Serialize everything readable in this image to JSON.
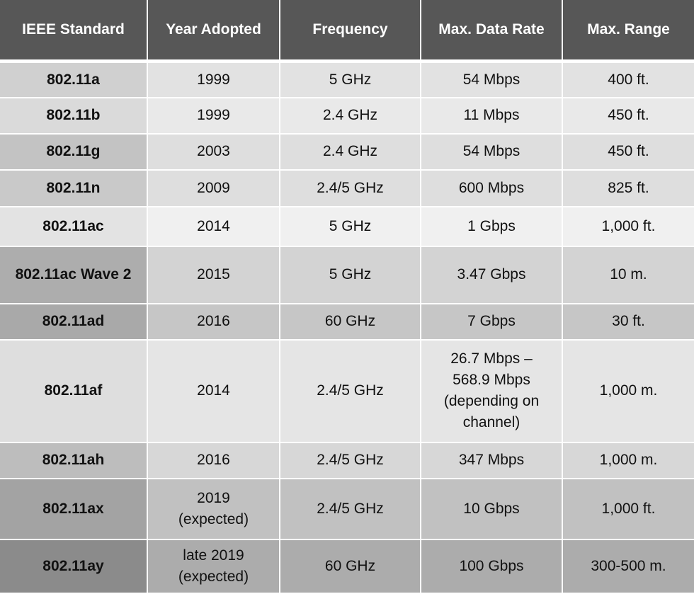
{
  "headers": [
    "IEEE Standard",
    "Year Adopted",
    "Frequency",
    "Max. Data Rate",
    "Max. Range"
  ],
  "rows": [
    {
      "standard": "802.11a",
      "year": "1999",
      "frequency": "5 GHz",
      "rate": "54 Mbps",
      "range": "400 ft."
    },
    {
      "standard": "802.11b",
      "year": "1999",
      "frequency": "2.4 GHz",
      "rate": "11 Mbps",
      "range": "450 ft."
    },
    {
      "standard": "802.11g",
      "year": "2003",
      "frequency": "2.4 GHz",
      "rate": "54 Mbps",
      "range": "450 ft."
    },
    {
      "standard": "802.11n",
      "year": "2009",
      "frequency": "2.4/5 GHz",
      "rate": "600 Mbps",
      "range": "825 ft."
    },
    {
      "standard": "802.11ac",
      "year": "2014",
      "frequency": "5 GHz",
      "rate": "1 Gbps",
      "range": "1,000 ft."
    },
    {
      "standard": "802.11ac Wave 2",
      "year": "2015",
      "frequency": "5 GHz",
      "rate": "3.47 Gbps",
      "range": "10 m."
    },
    {
      "standard": "802.11ad",
      "year": "2016",
      "frequency": "60 GHz",
      "rate": "7 Gbps",
      "range": "30 ft."
    },
    {
      "standard": "802.11af",
      "year": "2014",
      "frequency": "2.4/5 GHz",
      "rate": "26.7 Mbps –\n568.9 Mbps\n(depending on\nchannel)",
      "range": "1,000 m."
    },
    {
      "standard": "802.11ah",
      "year": "2016",
      "frequency": "2.4/5 GHz",
      "rate": "347 Mbps",
      "range": "1,000 m."
    },
    {
      "standard": "802.11ax",
      "year": "2019\n(expected)",
      "frequency": "2.4/5 GHz",
      "rate": "10 Gbps",
      "range": "1,000 ft."
    },
    {
      "standard": "802.11ay",
      "year": "late 2019\n(expected)",
      "frequency": "60 GHz",
      "rate": "100 Gbps",
      "range": "300-500 m."
    }
  ],
  "colors": {
    "header_bg": "#575757",
    "header_text": "#ffffff",
    "separator": "#ffffff",
    "first_col": [
      "#d0d0d0",
      "#dadada",
      "#c3c3c3",
      "#c9c9c9",
      "#e3e3e3",
      "#adadad",
      "#a9a9a9",
      "#dedede",
      "#bdbdbd",
      "#a3a3a3",
      "#8b8b8b"
    ],
    "cells": [
      "#e2e2e2",
      "#e9e9e9",
      "#dedede",
      "#dedede",
      "#f0f0f0",
      "#d3d3d3",
      "#c6c6c6",
      "#e5e5e5",
      "#d7d7d7",
      "#c1c1c1",
      "#acacac"
    ]
  }
}
